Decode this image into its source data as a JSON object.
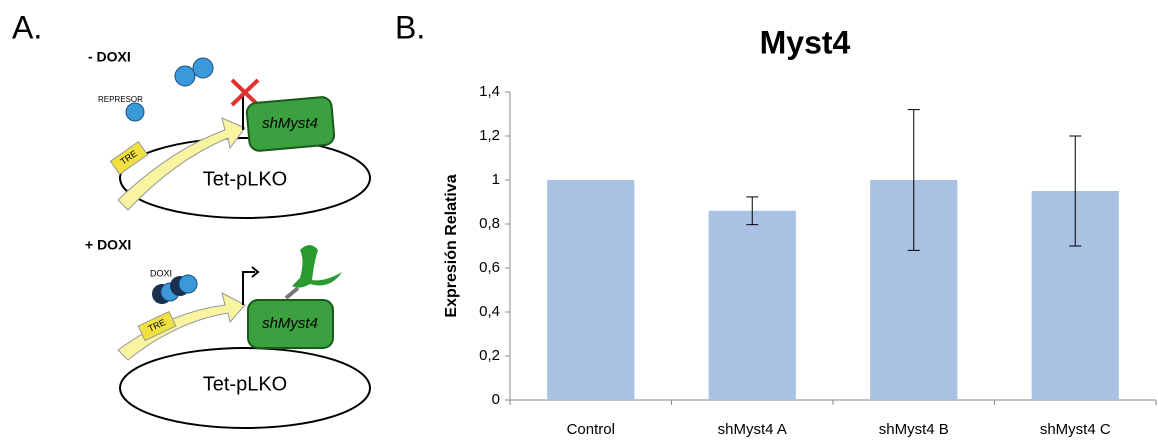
{
  "panel_a": {
    "label": "A.",
    "top": {
      "condition": "- DOXI",
      "repressor": "REPRESOR",
      "promoter": "TRE",
      "gene": "shMyst4",
      "plasmid": "Tet-pLKO"
    },
    "bottom": {
      "condition": "+ DOXI",
      "inducer": "DOXI",
      "promoter": "TRE",
      "gene": "shMyst4",
      "plasmid": "Tet-pLKO"
    }
  },
  "panel_b": {
    "label": "B."
  },
  "chart_data": {
    "type": "bar",
    "title": "Myst4",
    "y_label": "Expresión Relativa",
    "categories": [
      "Control",
      "shMyst4 A",
      "shMyst4 B",
      "shMyst4 C"
    ],
    "values": [
      1,
      0.86,
      1.0,
      0.95
    ],
    "errors": [
      null,
      0.063,
      0.32,
      0.25
    ],
    "color": "#a9c1e3",
    "error_color": "#000000",
    "ylim": [
      0,
      1.4
    ],
    "yticks": [
      0,
      {
        "value": 0.2,
        "label": "0,2"
      },
      {
        "value": 0.4,
        "label": "0,4"
      },
      {
        "value": 0.6,
        "label": "0,6"
      },
      {
        "value": 0.8,
        "label": "0,8"
      },
      1,
      {
        "value": 1.2,
        "label": "1,2"
      },
      {
        "value": 1.4,
        "label": "1,4"
      }
    ],
    "grid": false
  }
}
